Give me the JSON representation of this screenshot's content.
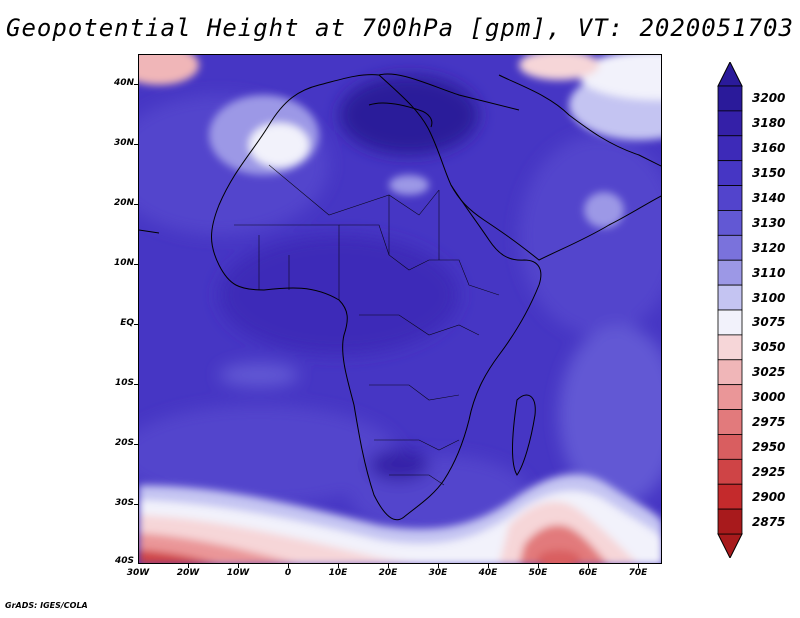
{
  "title": "Geopotential Height at 700hPa [gpm], VT: 2020051703",
  "map": {
    "lat_labels": [
      "40N",
      "30N",
      "20N",
      "10N",
      "EQ",
      "10S",
      "20S",
      "30S",
      "40S"
    ],
    "lon_labels": [
      "30W",
      "20W",
      "10W",
      "0",
      "10E",
      "20E",
      "30E",
      "40E",
      "50E",
      "60E",
      "70E"
    ],
    "extent": {
      "lon_min": -30,
      "lon_max": 75,
      "lat_min": -40,
      "lat_max": 45
    }
  },
  "colorbar": {
    "levels": [
      "3200",
      "3180",
      "3160",
      "3150",
      "3140",
      "3130",
      "3120",
      "3110",
      "3100",
      "3075",
      "3050",
      "3025",
      "3000",
      "2975",
      "2950",
      "2925",
      "2900",
      "2875"
    ],
    "colors": [
      "#2a1a9a",
      "#3420a8",
      "#3d2ab8",
      "#4636c4",
      "#5244cc",
      "#6258d4",
      "#7a72dc",
      "#9c98e6",
      "#c4c4f2",
      "#f2f2fb",
      "#f6d6d8",
      "#f0b6b8",
      "#ea9698",
      "#e27a7c",
      "#d95e60",
      "#cf4446",
      "#c42a2c",
      "#a81a1c"
    ]
  },
  "footer": "GrADS: IGES/COLA"
}
